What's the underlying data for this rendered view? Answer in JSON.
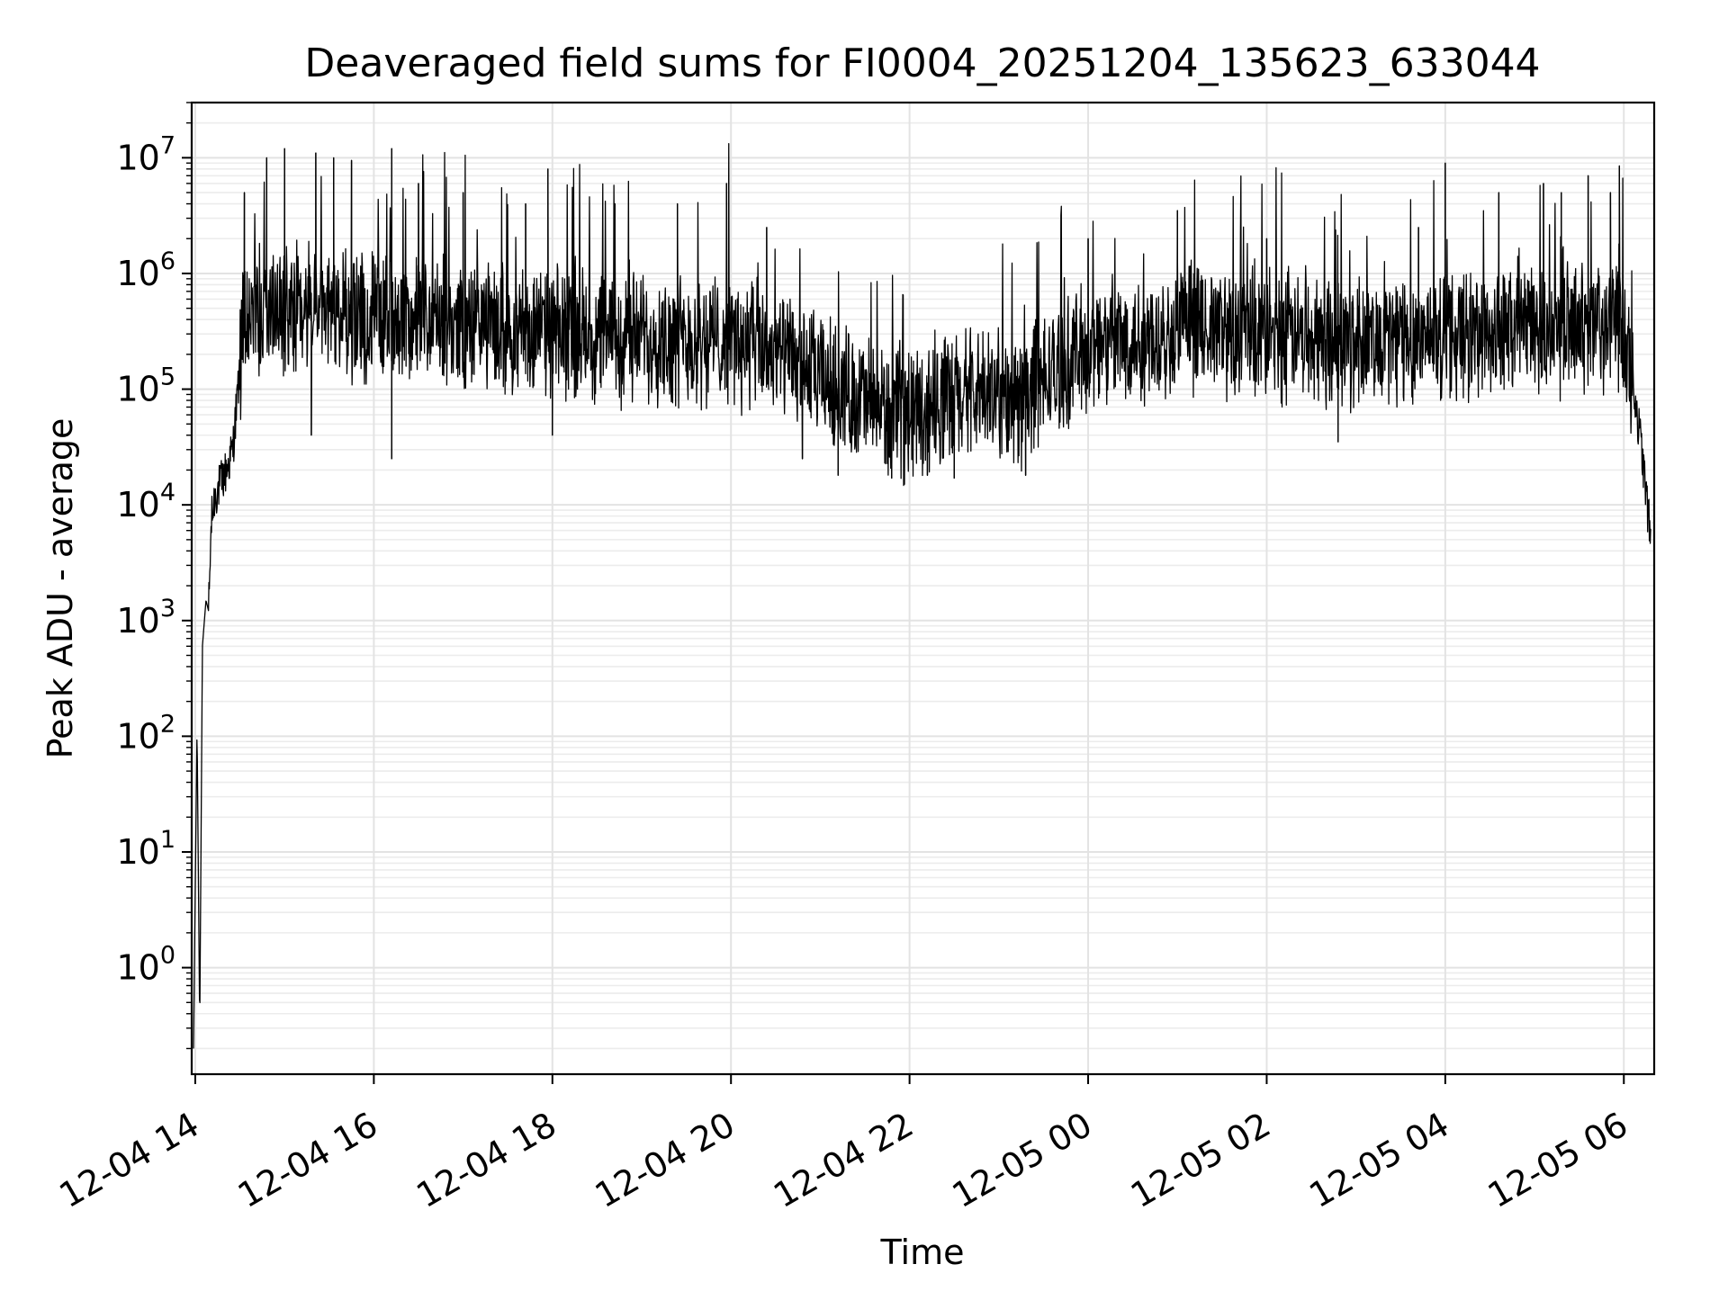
{
  "chart_data": {
    "type": "line",
    "title": "Deaveraged field sums for FI0004_20251204_135623_633044",
    "xlabel": "Time",
    "ylabel": "Peak ADU - average",
    "yscale": "log",
    "ylim": [
      0.12,
      30000000
    ],
    "xlim_hours": [
      -0.04,
      16.34
    ],
    "grid": "major and minor, light gray",
    "line_color": "#000000",
    "x_ticks": [
      {
        "label": "12-04 14",
        "hours": 0
      },
      {
        "label": "12-04 16",
        "hours": 2
      },
      {
        "label": "12-04 18",
        "hours": 4
      },
      {
        "label": "12-04 20",
        "hours": 6
      },
      {
        "label": "12-04 22",
        "hours": 8
      },
      {
        "label": "12-05 00",
        "hours": 10
      },
      {
        "label": "12-05 02",
        "hours": 12
      },
      {
        "label": "12-05 04",
        "hours": 14
      },
      {
        "label": "12-05 06",
        "hours": 16
      }
    ],
    "y_ticks": [
      {
        "base": "10",
        "exp": "0",
        "value": 1
      },
      {
        "base": "10",
        "exp": "1",
        "value": 10
      },
      {
        "base": "10",
        "exp": "2",
        "value": 100
      },
      {
        "base": "10",
        "exp": "3",
        "value": 1000
      },
      {
        "base": "10",
        "exp": "4",
        "value": 10000
      },
      {
        "base": "10",
        "exp": "5",
        "value": 100000
      },
      {
        "base": "10",
        "exp": "6",
        "value": 1000000
      },
      {
        "base": "10",
        "exp": "7",
        "value": 10000000
      }
    ],
    "series": [
      {
        "name": "Deaveraged field sum",
        "x_unit": "hours since 12-04 14:00",
        "envelope": [
          {
            "t": -0.02,
            "v": 0.2
          },
          {
            "t": 0.02,
            "v": 120
          },
          {
            "t": 0.05,
            "v": 0.3
          },
          {
            "t": 0.08,
            "v": 600
          },
          {
            "t": 0.12,
            "v": 1500
          },
          {
            "t": 0.15,
            "v": 1200
          },
          {
            "t": 0.18,
            "v": 7000
          },
          {
            "t": 0.22,
            "v": 12000
          },
          {
            "t": 0.28,
            "v": 15000
          },
          {
            "t": 0.35,
            "v": 20000
          },
          {
            "t": 0.42,
            "v": 30000
          },
          {
            "t": 0.5,
            "v": 150000
          },
          {
            "t": 0.55,
            "v": 350000
          },
          {
            "t": 0.7,
            "v": 500000
          },
          {
            "t": 1.0,
            "v": 480000
          },
          {
            "t": 2.0,
            "v": 420000
          },
          {
            "t": 3.0,
            "v": 350000
          },
          {
            "t": 4.0,
            "v": 300000
          },
          {
            "t": 5.0,
            "v": 280000
          },
          {
            "t": 6.0,
            "v": 270000
          },
          {
            "t": 6.5,
            "v": 200000
          },
          {
            "t": 7.0,
            "v": 120000
          },
          {
            "t": 7.5,
            "v": 80000
          },
          {
            "t": 7.8,
            "v": 60000
          },
          {
            "t": 8.2,
            "v": 70000
          },
          {
            "t": 8.8,
            "v": 90000
          },
          {
            "t": 9.2,
            "v": 80000
          },
          {
            "t": 9.6,
            "v": 130000
          },
          {
            "t": 10.0,
            "v": 230000
          },
          {
            "t": 11.0,
            "v": 320000
          },
          {
            "t": 12.0,
            "v": 300000
          },
          {
            "t": 13.0,
            "v": 260000
          },
          {
            "t": 14.0,
            "v": 300000
          },
          {
            "t": 15.0,
            "v": 320000
          },
          {
            "t": 15.8,
            "v": 350000
          },
          {
            "t": 16.0,
            "v": 300000
          },
          {
            "t": 16.1,
            "v": 120000
          },
          {
            "t": 16.2,
            "v": 30000
          },
          {
            "t": 16.3,
            "v": 5000
          }
        ],
        "peaks": [
          {
            "t": 0.55,
            "v": 5000000
          },
          {
            "t": 0.8,
            "v": 10000000
          },
          {
            "t": 1.0,
            "v": 12000000
          },
          {
            "t": 1.35,
            "v": 11000000
          },
          {
            "t": 1.55,
            "v": 10000000
          },
          {
            "t": 1.75,
            "v": 9500000
          },
          {
            "t": 2.2,
            "v": 12000000
          },
          {
            "t": 2.5,
            "v": 6000000
          },
          {
            "t": 3.0,
            "v": 5000000
          },
          {
            "t": 3.7,
            "v": 4000000
          },
          {
            "t": 3.95,
            "v": 8000000
          },
          {
            "t": 4.7,
            "v": 4000000
          },
          {
            "t": 5.4,
            "v": 4000000
          },
          {
            "t": 5.95,
            "v": 6000000
          },
          {
            "t": 6.4,
            "v": 2500000
          },
          {
            "t": 10.0,
            "v": 2000000
          },
          {
            "t": 11.0,
            "v": 3500000
          },
          {
            "t": 12.0,
            "v": 2000000
          },
          {
            "t": 13.7,
            "v": 2500000
          },
          {
            "t": 14.0,
            "v": 9000000
          },
          {
            "t": 14.6,
            "v": 5000000
          },
          {
            "t": 15.1,
            "v": 6000000
          },
          {
            "t": 15.3,
            "v": 5000000
          },
          {
            "t": 15.6,
            "v": 7000000
          },
          {
            "t": 15.85,
            "v": 5000000
          },
          {
            "t": 15.95,
            "v": 8500000
          }
        ],
        "troughs": [
          {
            "t": 1.3,
            "v": 40000
          },
          {
            "t": 2.2,
            "v": 25000
          },
          {
            "t": 4.0,
            "v": 40000
          },
          {
            "t": 6.8,
            "v": 25000
          },
          {
            "t": 7.2,
            "v": 18000
          },
          {
            "t": 7.8,
            "v": 17000
          },
          {
            "t": 8.2,
            "v": 18000
          },
          {
            "t": 8.5,
            "v": 17000
          },
          {
            "t": 9.3,
            "v": 18000
          },
          {
            "t": 12.8,
            "v": 35000
          }
        ]
      }
    ]
  }
}
